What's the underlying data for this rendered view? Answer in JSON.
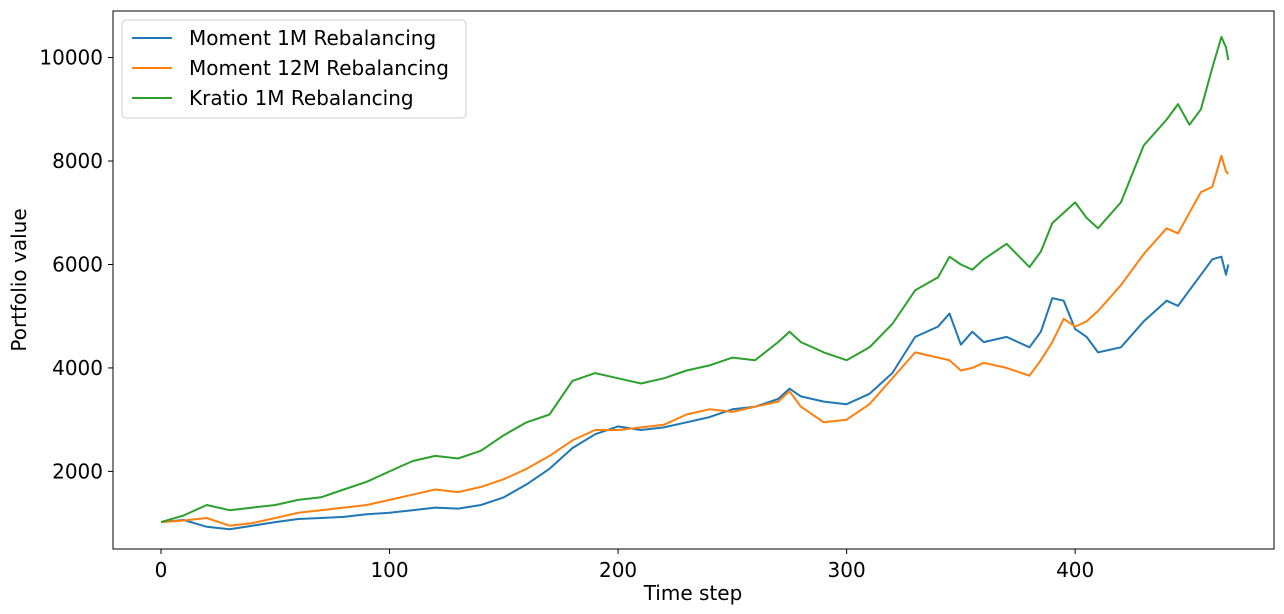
{
  "chart_data": {
    "type": "line",
    "title": "",
    "xlabel": "Time step",
    "ylabel": "Portfolio value",
    "xlim": [
      -21,
      487
    ],
    "ylim": [
      500,
      10900
    ],
    "xticks": [
      0,
      100,
      200,
      300,
      400
    ],
    "yticks": [
      2000,
      4000,
      6000,
      8000,
      10000
    ],
    "grid": false,
    "legend_position": "upper-left",
    "series": [
      {
        "name": "Moment 1M Rebalancing",
        "color": "#1f77b4",
        "x": [
          0,
          10,
          20,
          30,
          40,
          50,
          60,
          70,
          80,
          90,
          100,
          110,
          120,
          130,
          140,
          150,
          160,
          170,
          180,
          190,
          200,
          210,
          220,
          230,
          240,
          250,
          260,
          270,
          275,
          280,
          290,
          300,
          310,
          320,
          330,
          340,
          345,
          350,
          355,
          360,
          370,
          380,
          385,
          390,
          395,
          400,
          405,
          410,
          420,
          430,
          440,
          445,
          450,
          455,
          460,
          464,
          466,
          467
        ],
        "values": [
          1020,
          1060,
          930,
          880,
          950,
          1020,
          1080,
          1100,
          1120,
          1170,
          1200,
          1250,
          1300,
          1280,
          1350,
          1500,
          1750,
          2050,
          2450,
          2720,
          2870,
          2800,
          2850,
          2950,
          3050,
          3200,
          3250,
          3400,
          3600,
          3450,
          3350,
          3300,
          3500,
          3900,
          4600,
          4800,
          5050,
          4450,
          4700,
          4500,
          4600,
          4400,
          4700,
          5350,
          5300,
          4750,
          4600,
          4300,
          4400,
          4900,
          5300,
          5200,
          5500,
          5800,
          6100,
          6150,
          5800,
          6000
        ]
      },
      {
        "name": "Moment 12M Rebalancing",
        "color": "#ff7f0e",
        "x": [
          0,
          10,
          20,
          30,
          40,
          50,
          60,
          70,
          80,
          90,
          100,
          110,
          120,
          130,
          140,
          150,
          160,
          170,
          180,
          190,
          200,
          210,
          220,
          230,
          240,
          250,
          260,
          270,
          275,
          280,
          290,
          300,
          310,
          320,
          330,
          340,
          345,
          350,
          355,
          360,
          370,
          380,
          385,
          390,
          395,
          400,
          405,
          410,
          420,
          430,
          440,
          445,
          450,
          455,
          460,
          464,
          466,
          467
        ],
        "values": [
          1020,
          1050,
          1100,
          950,
          1000,
          1100,
          1200,
          1250,
          1300,
          1350,
          1450,
          1550,
          1650,
          1600,
          1700,
          1850,
          2050,
          2300,
          2600,
          2800,
          2800,
          2850,
          2900,
          3100,
          3200,
          3150,
          3250,
          3350,
          3550,
          3250,
          2950,
          3000,
          3300,
          3800,
          4300,
          4200,
          4150,
          3950,
          4000,
          4100,
          4000,
          3850,
          4150,
          4500,
          4950,
          4800,
          4900,
          5100,
          5600,
          6200,
          6700,
          6600,
          7000,
          7400,
          7500,
          8100,
          7800,
          7750
        ]
      },
      {
        "name": "Kratio 1M Rebalancing",
        "color": "#2ca02c",
        "x": [
          0,
          10,
          20,
          30,
          40,
          50,
          60,
          70,
          80,
          90,
          100,
          110,
          120,
          130,
          140,
          150,
          160,
          170,
          180,
          190,
          200,
          210,
          220,
          230,
          240,
          250,
          260,
          270,
          275,
          280,
          290,
          300,
          310,
          320,
          330,
          340,
          345,
          350,
          355,
          360,
          370,
          380,
          385,
          390,
          395,
          400,
          405,
          410,
          420,
          430,
          440,
          445,
          450,
          455,
          460,
          464,
          466,
          467
        ],
        "values": [
          1020,
          1150,
          1350,
          1250,
          1300,
          1350,
          1450,
          1500,
          1650,
          1800,
          2000,
          2200,
          2300,
          2250,
          2400,
          2700,
          2950,
          3100,
          3750,
          3900,
          3800,
          3700,
          3800,
          3950,
          4050,
          4200,
          4150,
          4500,
          4700,
          4500,
          4300,
          4150,
          4400,
          4850,
          5500,
          5750,
          6150,
          6000,
          5900,
          6100,
          6400,
          5950,
          6250,
          6800,
          7000,
          7200,
          6900,
          6700,
          7200,
          8300,
          8800,
          9100,
          8700,
          9000,
          9800,
          10400,
          10200,
          9950
        ]
      }
    ]
  }
}
